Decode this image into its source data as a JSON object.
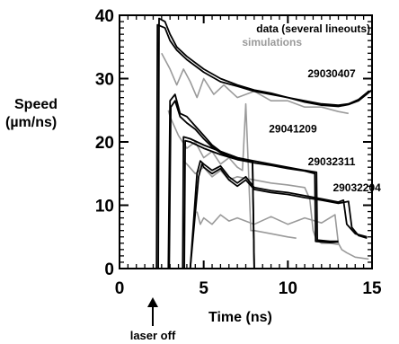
{
  "chart_data": {
    "type": "line",
    "xlabel": "Time (ns)",
    "ylabel": "Speed",
    "ylabel_unit": "(µm/ns)",
    "xlim": [
      0,
      15
    ],
    "ylim": [
      0,
      40
    ],
    "x_ticks": [
      0,
      5,
      10,
      15
    ],
    "y_ticks": [
      0,
      10,
      20,
      30,
      40
    ],
    "x_minor_step": 0.5,
    "y_minor_step": 1,
    "grid": false,
    "legend": {
      "position": "top-right",
      "entries": [
        {
          "label": "data (several lineouts)",
          "color": "#000000"
        },
        {
          "label": "simulations",
          "color": "#9a9a9a"
        }
      ]
    },
    "annotations": [
      {
        "text": "laser off",
        "x": 2.5
      }
    ],
    "runs": [
      {
        "label": "29030407",
        "label_at": [
          12.6,
          30.2
        ]
      },
      {
        "label": "29041209",
        "label_at": [
          10.3,
          21.5
        ]
      },
      {
        "label": "29032311",
        "label_at": [
          12.6,
          16.3
        ]
      },
      {
        "label": "29032204",
        "label_at": [
          14.1,
          12.2
        ]
      }
    ],
    "series": [
      {
        "name": "data (several lineouts)",
        "kind": "data",
        "color": "#000000",
        "lines": [
          {
            "x": [
              0.5,
              2.0,
              2.3,
              2.35,
              2.7,
              3.0,
              3.4,
              4.0,
              5.0,
              6.0,
              7.0,
              8.0,
              9.0,
              10.0,
              11.0,
              12.0,
              13.0,
              13.6,
              14.2,
              14.8,
              15.0
            ],
            "y": [
              0,
              0,
              0,
              39.5,
              39.0,
              37.0,
              35.0,
              33.5,
              31.5,
              30.0,
              29.0,
              28.2,
              27.7,
              27.0,
              26.5,
              26.0,
              25.8,
              26.0,
              26.7,
              28.0,
              28.0
            ]
          },
          {
            "x": [
              0.5,
              2.0,
              2.2,
              2.25,
              2.7,
              3.0,
              3.4,
              4.0,
              5.0,
              6.0,
              7.0,
              8.0,
              9.0,
              10.0,
              11.0,
              12.0,
              13.0,
              13.6,
              14.2,
              14.8,
              15.0
            ],
            "y": [
              0,
              0,
              0,
              38.5,
              38.0,
              36.0,
              34.5,
              33.0,
              31.0,
              29.5,
              28.8,
              28.0,
              27.5,
              27.0,
              26.3,
              25.8,
              25.6,
              25.9,
              26.5,
              27.8,
              28.2
            ]
          },
          {
            "x": [
              0.5,
              2.4,
              2.9,
              3.0,
              3.3,
              3.6,
              4.0,
              4.5,
              5.0,
              5.5,
              6.0,
              6.5,
              7.0,
              7.5,
              7.9,
              8.0
            ],
            "y": [
              0,
              0,
              0,
              26.5,
              27.5,
              24.5,
              24.0,
              22.5,
              21.0,
              19.5,
              18.5,
              18.0,
              17.5,
              17.2,
              17.0,
              0
            ]
          },
          {
            "x": [
              0.5,
              2.4,
              2.95,
              3.05,
              3.3,
              3.6,
              4.0,
              4.5,
              5.0,
              5.5,
              6.0,
              6.5,
              7.0,
              7.5,
              7.9,
              8.0
            ],
            "y": [
              0,
              0,
              0,
              25.5,
              26.5,
              24.0,
              23.0,
              22.0,
              20.5,
              19.2,
              18.3,
              17.7,
              17.4,
              17.1,
              16.8,
              0
            ]
          },
          {
            "x": [
              0.5,
              3.5,
              3.75,
              3.8,
              4.2,
              5.0,
              6.0,
              7.0,
              8.0,
              9.0,
              10.0,
              11.0,
              11.7,
              11.75,
              12.5,
              13.0
            ],
            "y": [
              0,
              0,
              0,
              20.8,
              20.5,
              19.5,
              18.5,
              17.5,
              17.0,
              16.5,
              16.0,
              15.5,
              15.2,
              4.5,
              4.3,
              4.3
            ]
          },
          {
            "x": [
              0.5,
              3.5,
              3.85,
              3.9,
              4.2,
              5.0,
              6.0,
              7.0,
              8.0,
              9.0,
              10.0,
              11.0,
              11.6,
              11.65,
              12.5,
              13.0
            ],
            "y": [
              0,
              0,
              0,
              20.2,
              20.0,
              19.0,
              18.0,
              17.2,
              16.7,
              16.3,
              15.8,
              15.4,
              15.0,
              4.3,
              4.1,
              4.2
            ]
          },
          {
            "x": [
              0.5,
              3.5,
              4.2,
              4.6,
              4.8,
              5.0,
              5.5,
              6.0,
              6.5,
              7.0,
              7.5,
              8.0,
              9.0,
              10.0,
              11.0,
              12.0,
              13.0,
              13.3,
              13.5,
              14.0,
              14.7
            ],
            "y": [
              0,
              0,
              0,
              15.0,
              17.0,
              16.5,
              15.5,
              16.2,
              14.5,
              13.5,
              14.5,
              12.8,
              12.3,
              12.0,
              11.5,
              11.0,
              10.5,
              10.8,
              7.0,
              5.5,
              5.0
            ]
          },
          {
            "x": [
              0.5,
              3.5,
              4.2,
              4.7,
              4.9,
              5.0,
              5.5,
              6.0,
              6.5,
              7.0,
              7.5,
              8.0,
              9.0,
              10.0,
              11.0,
              12.0,
              13.0,
              13.6,
              13.8,
              14.2,
              14.7
            ],
            "y": [
              0,
              0,
              0,
              14.5,
              16.5,
              16.0,
              15.0,
              15.8,
              14.0,
              13.0,
              14.0,
              12.5,
              12.0,
              11.7,
              11.2,
              10.8,
              10.3,
              10.6,
              6.5,
              5.2,
              4.8
            ]
          }
        ]
      },
      {
        "name": "simulations",
        "kind": "simulation",
        "color": "#9a9a9a",
        "lines": [
          {
            "x": [
              2.5,
              2.7,
              3.0,
              3.4,
              3.8,
              4.2,
              4.6,
              5.0,
              5.6,
              6.2,
              7.0,
              8.0,
              9.0,
              10.0,
              11.0,
              12.0,
              13.0,
              13.6
            ],
            "y": [
              34.0,
              33.0,
              31.5,
              29.0,
              31.5,
              29.5,
              27.0,
              30.0,
              27.5,
              29.0,
              27.0,
              28.0,
              26.5,
              26.5,
              25.5,
              25.5,
              24.8,
              24.5
            ]
          },
          {
            "x": [
              2.9,
              3.0,
              3.5,
              4.0,
              4.5,
              5.0,
              5.5,
              6.0,
              6.5,
              7.0,
              7.3,
              7.5,
              7.6,
              7.8,
              8.0,
              9.0,
              10.0,
              10.5
            ],
            "y": [
              25.0,
              24.0,
              21.0,
              19.0,
              20.0,
              17.5,
              18.5,
              16.5,
              17.5,
              16.0,
              15.5,
              26.0,
              19.5,
              6.0,
              6.0,
              5.5,
              5.0,
              4.8
            ]
          },
          {
            "x": [
              3.8,
              4.0,
              4.5,
              5.0,
              5.5,
              6.0,
              6.5,
              7.0,
              8.0,
              9.0,
              10.0,
              11.0,
              11.3,
              11.5,
              11.7,
              12.0,
              12.5,
              13.0
            ],
            "y": [
              17.0,
              16.5,
              15.0,
              16.0,
              14.5,
              15.5,
              14.0,
              14.5,
              14.0,
              13.5,
              13.2,
              12.8,
              11.0,
              6.0,
              4.5,
              4.0,
              4.0,
              3.8
            ]
          },
          {
            "x": [
              4.6,
              4.8,
              5.0,
              5.5,
              6.0,
              6.5,
              7.0,
              8.0,
              9.0,
              10.0,
              11.0,
              12.0,
              12.8,
              13.0,
              13.2,
              13.5,
              14.0,
              14.8
            ],
            "y": [
              9.0,
              7.0,
              8.0,
              7.0,
              8.5,
              7.5,
              8.0,
              7.0,
              8.2,
              7.0,
              8.0,
              7.2,
              8.5,
              4.0,
              3.0,
              2.5,
              1.8,
              1.5
            ]
          }
        ]
      }
    ]
  }
}
